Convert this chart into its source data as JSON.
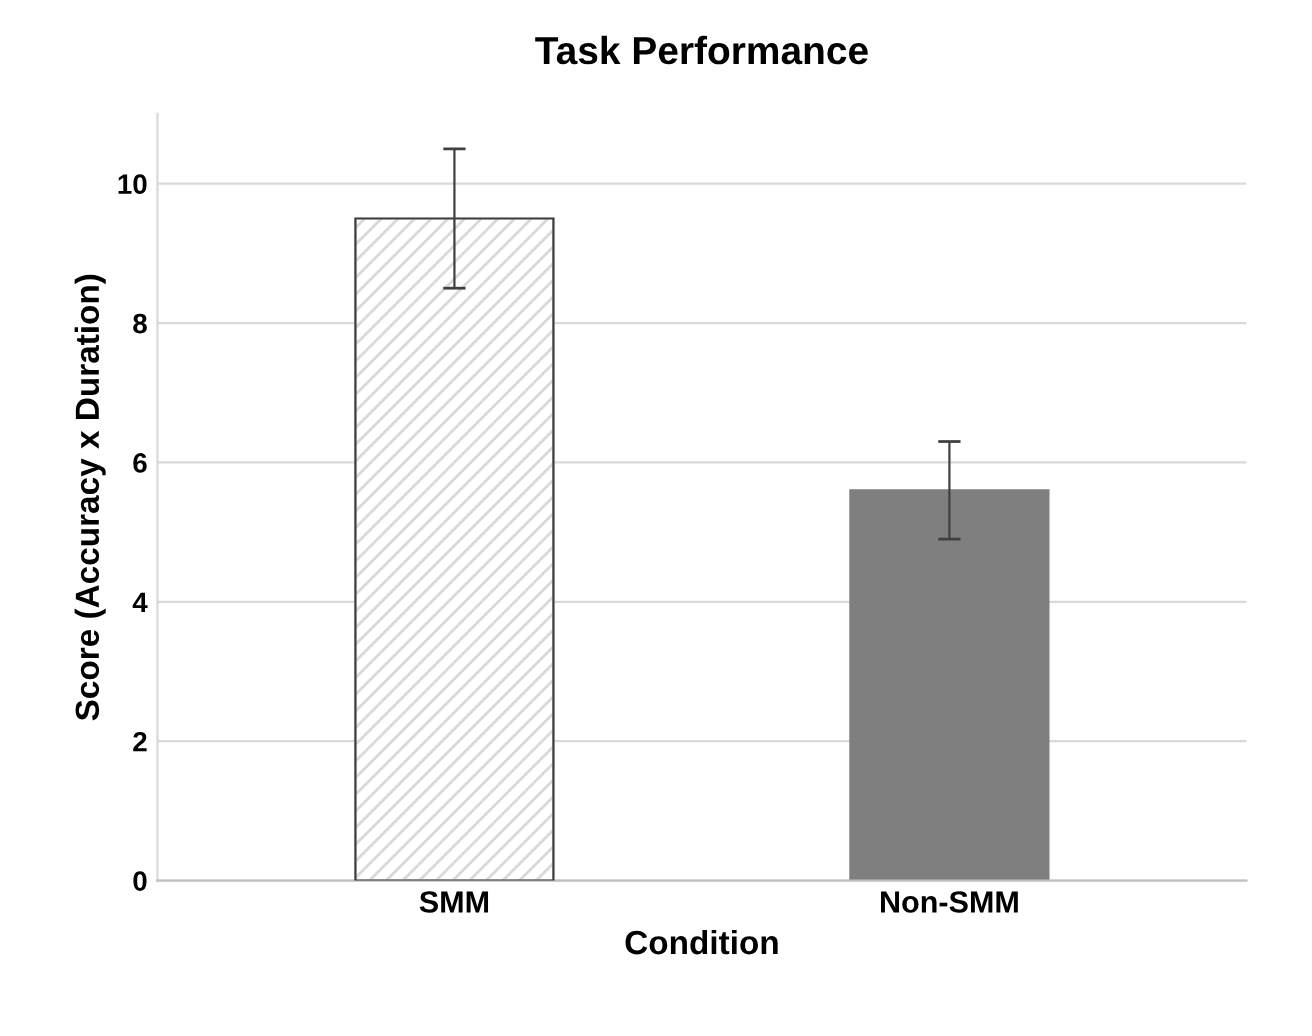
{
  "chart_data": {
    "type": "bar",
    "title": "Task Performance",
    "xlabel": "Condition",
    "ylabel": "Score (Accuracy x Duration)",
    "categories": [
      "SMM",
      "Non-SMM"
    ],
    "values": [
      9.5,
      5.6
    ],
    "errors": [
      1.0,
      0.7
    ],
    "colors": [
      "#d9d9d9",
      "#7f7f7f"
    ],
    "ylim": [
      0,
      11
    ],
    "yticks": [
      0,
      2,
      4,
      6,
      8,
      10
    ],
    "grid": "y",
    "legend": false
  }
}
